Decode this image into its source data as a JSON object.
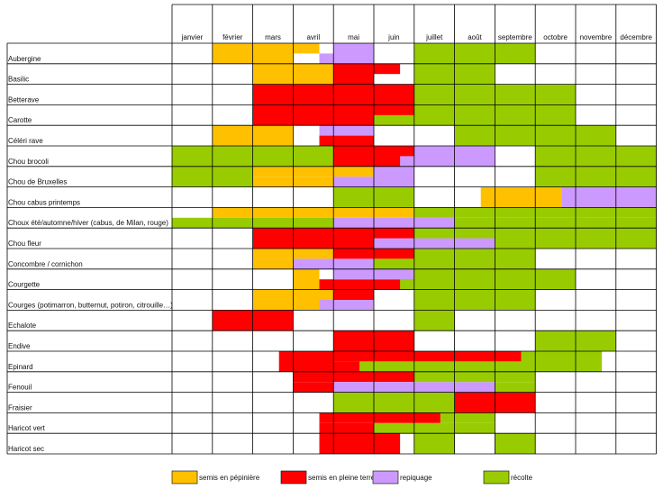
{
  "colors": {
    "semis_pepiniere": "#FFC000",
    "semis_pleine_terre": "#FF0000",
    "repiquage": "#CC99FF",
    "recolte": "#99CC00",
    "grid": "#000000"
  },
  "chart_data": {
    "type": "table",
    "months": [
      "janvier",
      "février",
      "mars",
      "avril",
      "mai",
      "juin",
      "juillet",
      "août",
      "septembre",
      "octobre",
      "novembre",
      "décembre"
    ],
    "legend": [
      {
        "key": "semis_pepiniere",
        "label": "semis en pépinière"
      },
      {
        "key": "semis_pleine_terre",
        "label": "semis en pleine terre"
      },
      {
        "key": "repiquage",
        "label": "repiquage"
      },
      {
        "key": "recolte",
        "label": "récolte"
      }
    ],
    "rows": [
      {
        "name": "Aubergine",
        "bars": [
          {
            "type": "semis_pepiniere",
            "start": 2,
            "end": 4,
            "band": "full"
          },
          {
            "type": "semis_pepiniere",
            "start": 4,
            "end": 4.65,
            "band": "top"
          },
          {
            "type": "repiquage",
            "start": 4.65,
            "end": 5,
            "band": "bottom"
          },
          {
            "type": "repiquage",
            "start": 5,
            "end": 6,
            "band": "full"
          },
          {
            "type": "recolte",
            "start": 7,
            "end": 10,
            "band": "full"
          }
        ]
      },
      {
        "name": "Basilic",
        "bars": [
          {
            "type": "semis_pepiniere",
            "start": 3,
            "end": 5,
            "band": "full"
          },
          {
            "type": "semis_pleine_terre",
            "start": 5,
            "end": 6,
            "band": "full"
          },
          {
            "type": "semis_pleine_terre",
            "start": 6,
            "end": 6.65,
            "band": "top"
          },
          {
            "type": "recolte",
            "start": 7,
            "end": 9,
            "band": "full"
          }
        ]
      },
      {
        "name": "Betterave",
        "bars": [
          {
            "type": "semis_pleine_terre",
            "start": 3,
            "end": 7,
            "band": "full"
          },
          {
            "type": "recolte",
            "start": 7,
            "end": 11,
            "band": "full"
          }
        ]
      },
      {
        "name": "Carotte",
        "bars": [
          {
            "type": "semis_pleine_terre",
            "start": 3,
            "end": 7,
            "band": "full"
          },
          {
            "type": "recolte",
            "start": 6,
            "end": 7,
            "band": "bottom"
          },
          {
            "type": "recolte",
            "start": 7,
            "end": 11,
            "band": "full"
          }
        ]
      },
      {
        "name": "Céléri rave",
        "bars": [
          {
            "type": "semis_pepiniere",
            "start": 2,
            "end": 4,
            "band": "full"
          },
          {
            "type": "repiquage",
            "start": 4.65,
            "end": 6,
            "band": "top"
          },
          {
            "type": "semis_pleine_terre",
            "start": 4.65,
            "end": 6,
            "band": "bottom"
          },
          {
            "type": "recolte",
            "start": 8,
            "end": 12,
            "band": "full"
          }
        ]
      },
      {
        "name": "Chou brocoli",
        "bars": [
          {
            "type": "recolte",
            "start": 1,
            "end": 5,
            "band": "full"
          },
          {
            "type": "semis_pleine_terre",
            "start": 5,
            "end": 7,
            "band": "full"
          },
          {
            "type": "repiquage",
            "start": 6.65,
            "end": 7,
            "band": "bottom"
          },
          {
            "type": "repiquage",
            "start": 7,
            "end": 9,
            "band": "full"
          },
          {
            "type": "recolte",
            "start": 10,
            "end": 13,
            "band": "full"
          }
        ]
      },
      {
        "name": "Chou de Bruxelles",
        "bars": [
          {
            "type": "recolte",
            "start": 1,
            "end": 3,
            "band": "full"
          },
          {
            "type": "semis_pepiniere",
            "start": 3,
            "end": 6,
            "band": "top"
          },
          {
            "type": "semis_pepiniere",
            "start": 3,
            "end": 5,
            "band": "bottom"
          },
          {
            "type": "repiquage",
            "start": 5,
            "end": 6,
            "band": "bottom"
          },
          {
            "type": "repiquage",
            "start": 6,
            "end": 7,
            "band": "full"
          },
          {
            "type": "recolte",
            "start": 10,
            "end": 13,
            "band": "full"
          }
        ]
      },
      {
        "name": "Chou cabus printemps",
        "bars": [
          {
            "type": "recolte",
            "start": 5,
            "end": 7,
            "band": "full"
          },
          {
            "type": "semis_pepiniere",
            "start": 8.65,
            "end": 10.65,
            "band": "full"
          },
          {
            "type": "repiquage",
            "start": 10.65,
            "end": 13,
            "band": "full"
          }
        ]
      },
      {
        "name": "Choux été/automne/hiver (cabus, de Milan, rouge)",
        "bars": [
          {
            "type": "semis_pepiniere",
            "start": 2,
            "end": 7,
            "band": "top"
          },
          {
            "type": "recolte",
            "start": 7,
            "end": 13,
            "band": "top"
          },
          {
            "type": "recolte",
            "start": 1,
            "end": 5,
            "band": "bottom"
          },
          {
            "type": "repiquage",
            "start": 5,
            "end": 8,
            "band": "bottom"
          },
          {
            "type": "recolte",
            "start": 8,
            "end": 13,
            "band": "bottom"
          }
        ]
      },
      {
        "name": "Chou fleur",
        "bars": [
          {
            "type": "semis_pleine_terre",
            "start": 3,
            "end": 7,
            "band": "full"
          },
          {
            "type": "recolte",
            "start": 7,
            "end": 13,
            "band": "full"
          },
          {
            "type": "repiquage",
            "start": 6,
            "end": 9,
            "band": "bottom"
          }
        ]
      },
      {
        "name": "Concombre / cornichon",
        "bars": [
          {
            "type": "semis_pepiniere",
            "start": 3,
            "end": 5,
            "band": "top"
          },
          {
            "type": "semis_pepiniere",
            "start": 3,
            "end": 4,
            "band": "bottom"
          },
          {
            "type": "repiquage",
            "start": 4,
            "end": 5,
            "band": "bottom"
          },
          {
            "type": "semis_pleine_terre",
            "start": 5,
            "end": 6,
            "band": "top"
          },
          {
            "type": "repiquage",
            "start": 5,
            "end": 6,
            "band": "bottom"
          },
          {
            "type": "semis_pleine_terre",
            "start": 6,
            "end": 7,
            "band": "top"
          },
          {
            "type": "recolte",
            "start": 6,
            "end": 7,
            "band": "bottom"
          },
          {
            "type": "recolte",
            "start": 7,
            "end": 10,
            "band": "full"
          }
        ]
      },
      {
        "name": "Courgette",
        "bars": [
          {
            "type": "semis_pepiniere",
            "start": 4,
            "end": 4.65,
            "band": "full"
          },
          {
            "type": "semis_pleine_terre",
            "start": 4.65,
            "end": 7,
            "band": "bottom"
          },
          {
            "type": "repiquage",
            "start": 5,
            "end": 7,
            "band": "top"
          },
          {
            "type": "recolte",
            "start": 6.65,
            "end": 7,
            "band": "bottom"
          },
          {
            "type": "recolte",
            "start": 7,
            "end": 11,
            "band": "full"
          }
        ]
      },
      {
        "name": "Courges (potimarron, butternut, potiron, citrouille…)",
        "bars": [
          {
            "type": "semis_pepiniere",
            "start": 3,
            "end": 5,
            "band": "top"
          },
          {
            "type": "semis_pepiniere",
            "start": 3,
            "end": 4.65,
            "band": "bottom"
          },
          {
            "type": "semis_pleine_terre",
            "start": 5,
            "end": 6,
            "band": "top"
          },
          {
            "type": "repiquage",
            "start": 4.65,
            "end": 6,
            "band": "bottom"
          },
          {
            "type": "recolte",
            "start": 7,
            "end": 10,
            "band": "full"
          }
        ]
      },
      {
        "name": "Echalote",
        "bars": [
          {
            "type": "semis_pleine_terre",
            "start": 2,
            "end": 4,
            "band": "full"
          },
          {
            "type": "recolte",
            "start": 7,
            "end": 8,
            "band": "full"
          }
        ]
      },
      {
        "name": "Endive",
        "bars": [
          {
            "type": "semis_pleine_terre",
            "start": 5,
            "end": 7,
            "band": "full"
          },
          {
            "type": "recolte",
            "start": 10,
            "end": 12,
            "band": "full"
          }
        ]
      },
      {
        "name": "Epinard",
        "bars": [
          {
            "type": "semis_pleine_terre",
            "start": 3.65,
            "end": 5,
            "band": "full"
          },
          {
            "type": "semis_pleine_terre",
            "start": 5,
            "end": 9.65,
            "band": "top"
          },
          {
            "type": "semis_pleine_terre",
            "start": 5,
            "end": 5.65,
            "band": "bottom"
          },
          {
            "type": "recolte",
            "start": 5.65,
            "end": 9.65,
            "band": "bottom"
          },
          {
            "type": "recolte",
            "start": 9.65,
            "end": 11.65,
            "band": "full"
          }
        ]
      },
      {
        "name": "Fenouil",
        "bars": [
          {
            "type": "semis_pleine_terre",
            "start": 4,
            "end": 7,
            "band": "top"
          },
          {
            "type": "semis_pleine_terre",
            "start": 4,
            "end": 5,
            "band": "bottom"
          },
          {
            "type": "repiquage",
            "start": 5,
            "end": 9,
            "band": "bottom"
          },
          {
            "type": "recolte",
            "start": 7,
            "end": 10,
            "band": "top"
          },
          {
            "type": "recolte",
            "start": 9,
            "end": 10,
            "band": "bottom"
          }
        ]
      },
      {
        "name": "Fraisier",
        "bars": [
          {
            "type": "recolte",
            "start": 5,
            "end": 8,
            "band": "full"
          },
          {
            "type": "semis_pleine_terre",
            "start": 8,
            "end": 10,
            "band": "full"
          }
        ]
      },
      {
        "name": "Haricot vert",
        "bars": [
          {
            "type": "semis_pleine_terre",
            "start": 4.65,
            "end": 7.65,
            "band": "top"
          },
          {
            "type": "semis_pleine_terre",
            "start": 4.65,
            "end": 6,
            "band": "bottom"
          },
          {
            "type": "recolte",
            "start": 6,
            "end": 9,
            "band": "bottom"
          },
          {
            "type": "recolte",
            "start": 7.65,
            "end": 9,
            "band": "top"
          }
        ]
      },
      {
        "name": "Haricot sec",
        "bars": [
          {
            "type": "semis_pleine_terre",
            "start": 4.65,
            "end": 6.65,
            "band": "full"
          },
          {
            "type": "recolte",
            "start": 7,
            "end": 8,
            "band": "full"
          },
          {
            "type": "recolte",
            "start": 9,
            "end": 10,
            "band": "full"
          }
        ]
      }
    ]
  }
}
